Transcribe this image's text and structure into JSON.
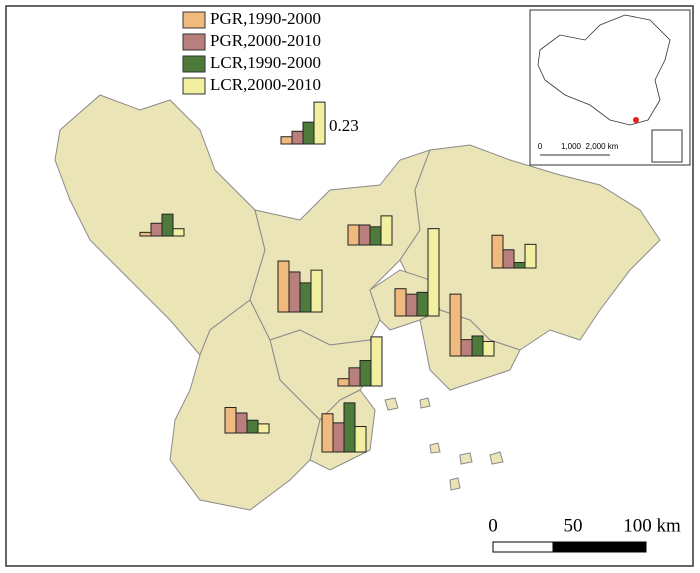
{
  "legend": {
    "items": [
      {
        "name": "PGR,1990-2000",
        "color": "#f0b97e"
      },
      {
        "name": "PGR,2000-2010",
        "color": "#b87f7c"
      },
      {
        "name": "LCR,1990-2000",
        "color": "#4e7a3c"
      },
      {
        "name": "LCR,2000-2010",
        "color": "#f2f0a0"
      }
    ],
    "sample_values": [
      0.04,
      0.07,
      0.12,
      0.23
    ]
  },
  "regions": [
    {
      "values": [
        0.02,
        0.07,
        0.12,
        0.04
      ]
    },
    {
      "values": [
        0.11,
        0.11,
        0.1,
        0.16
      ]
    },
    {
      "values": [
        0.28,
        0.22,
        0.16,
        0.23
      ]
    },
    {
      "values": [
        0.15,
        0.12,
        0.13,
        0.48
      ]
    },
    {
      "values": [
        0.18,
        0.1,
        0.03,
        0.13
      ]
    },
    {
      "values": [
        0.34,
        0.09,
        0.11,
        0.08
      ]
    },
    {
      "values": [
        0.04,
        0.1,
        0.14,
        0.27
      ]
    },
    {
      "values": [
        0.14,
        0.11,
        0.07,
        0.05
      ]
    },
    {
      "values": [
        0.21,
        0.16,
        0.27,
        0.14
      ]
    }
  ],
  "scale_bar": {
    "labels": [
      "0",
      "50",
      "100 km"
    ]
  },
  "inset": {
    "scale_labels": [
      "0",
      "1,000",
      "2,000 km"
    ]
  }
}
